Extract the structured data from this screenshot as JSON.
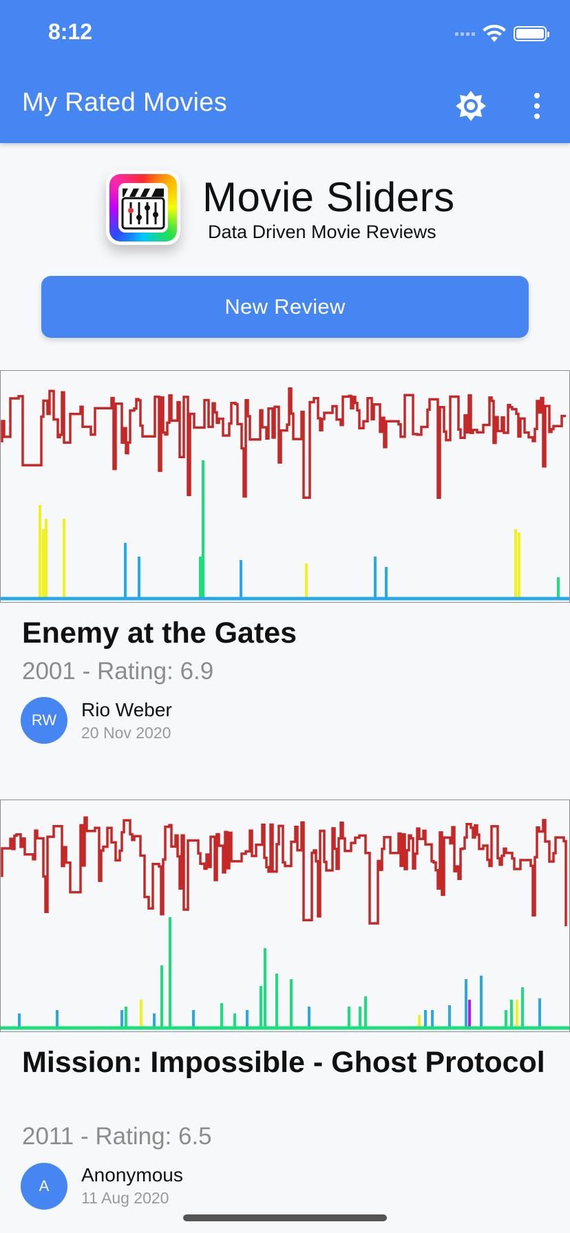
{
  "status_bar": {
    "time": "8:12"
  },
  "app_bar": {
    "title": "My Rated Movies",
    "actions": [
      "brightness-icon",
      "more-vert-icon"
    ]
  },
  "brand": {
    "title": "Movie Sliders",
    "subtitle": "Data Driven Movie Reviews"
  },
  "new_review_button": {
    "label": "New Review"
  },
  "colors": {
    "primary": "#4686f3",
    "red_line": "#c62828",
    "green": "#19e07a",
    "blue": "#29a8e8",
    "yellow": "#f2f21a",
    "purple": "#b51ae6"
  },
  "reviews": [
    {
      "title": "Enemy at the Gates",
      "meta": "2001 - Rating: 6.9",
      "avatar": "RW",
      "reviewer": "Rio Weber",
      "date": "20 Nov 2020"
    },
    {
      "title": "Mission: Impossible - Ghost Protocol",
      "meta": "2011 - Rating: 6.5",
      "avatar": "A",
      "reviewer": "Anonymous",
      "date": "11 Aug 2020"
    }
  ]
}
